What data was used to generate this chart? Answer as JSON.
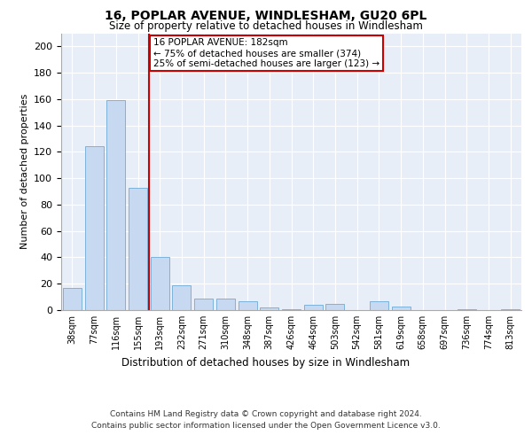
{
  "title": "16, POPLAR AVENUE, WINDLESHAM, GU20 6PL",
  "subtitle": "Size of property relative to detached houses in Windlesham",
  "xlabel": "Distribution of detached houses by size in Windlesham",
  "ylabel": "Number of detached properties",
  "categories": [
    "38sqm",
    "77sqm",
    "116sqm",
    "155sqm",
    "193sqm",
    "232sqm",
    "271sqm",
    "310sqm",
    "348sqm",
    "387sqm",
    "426sqm",
    "464sqm",
    "503sqm",
    "542sqm",
    "581sqm",
    "619sqm",
    "658sqm",
    "697sqm",
    "736sqm",
    "774sqm",
    "813sqm"
  ],
  "values": [
    17,
    124,
    159,
    93,
    40,
    19,
    9,
    9,
    7,
    2,
    1,
    4,
    5,
    0,
    7,
    3,
    0,
    0,
    1,
    0,
    1
  ],
  "bar_color": "#c6d9f0",
  "bar_edge_color": "#6faad4",
  "vline_color": "#cc0000",
  "annotation_text": "16 POPLAR AVENUE: 182sqm\n← 75% of detached houses are smaller (374)\n25% of semi-detached houses are larger (123) →",
  "annotation_box_color": "#ffffff",
  "annotation_box_edge_color": "#cc0000",
  "ylim": [
    0,
    210
  ],
  "yticks": [
    0,
    20,
    40,
    60,
    80,
    100,
    120,
    140,
    160,
    180,
    200
  ],
  "background_color": "#e8eef7",
  "footer_line1": "Contains HM Land Registry data © Crown copyright and database right 2024.",
  "footer_line2": "Contains public sector information licensed under the Open Government Licence v3.0."
}
